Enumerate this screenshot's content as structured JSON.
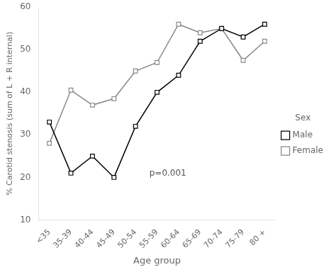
{
  "chart_data": {
    "type": "line",
    "categories": [
      "<35",
      "35-39",
      "40-44",
      "45-49",
      "50-54",
      "55-59",
      "60-64",
      "65-69",
      "70-74",
      "75-79",
      "80 +"
    ],
    "series": [
      {
        "name": "Male",
        "color": "#000000",
        "values": [
          33,
          21,
          25,
          20,
          32,
          40,
          44,
          52,
          55,
          53,
          56
        ]
      },
      {
        "name": "Female",
        "color": "#888888",
        "values": [
          28,
          40.5,
          37,
          38.5,
          45,
          47,
          56,
          54,
          55,
          47.5,
          52
        ]
      }
    ],
    "marker": "square",
    "line_style": "solid",
    "xlabel": "Age group",
    "ylabel": "% Carotid stenosis (sum of L + R internal)",
    "ylim": [
      10,
      60
    ],
    "yticks": [
      10,
      20,
      30,
      40,
      50,
      60
    ],
    "grid": false,
    "legend": "right",
    "legend_title": "Sex",
    "annotations": [
      {
        "text": "p=0.001",
        "x": 5.5,
        "y": 21
      }
    ]
  }
}
